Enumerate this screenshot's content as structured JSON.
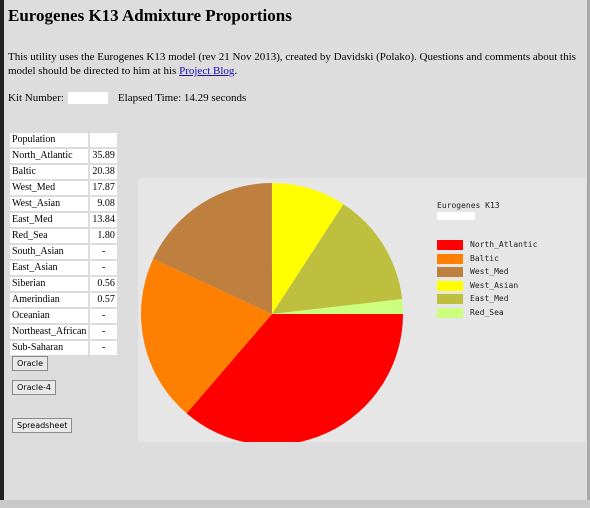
{
  "page": {
    "title": "Eurogenes K13 Admixture Proportions",
    "intro_text": "This utility uses the Eurogenes K13 model (rev 21 Nov 2013), created by Davidski (Polako). Questions and comments about this model should be directed to him at his ",
    "blog_link_text": "Project Blog",
    "intro_end": ".",
    "kit_label": "Kit Number:",
    "kit_value": "",
    "elapsed_label": "Elapsed Time: 14.29 seconds"
  },
  "table": {
    "header": "Population",
    "rows": [
      {
        "name": "North_Atlantic",
        "value": "35.89"
      },
      {
        "name": "Baltic",
        "value": "20.38"
      },
      {
        "name": "West_Med",
        "value": "17.87"
      },
      {
        "name": "West_Asian",
        "value": "9.08"
      },
      {
        "name": "East_Med",
        "value": "13.84"
      },
      {
        "name": "Red_Sea",
        "value": "1.80"
      },
      {
        "name": "South_Asian",
        "value": "-"
      },
      {
        "name": "East_Asian",
        "value": "-"
      },
      {
        "name": "Siberian",
        "value": "0.56"
      },
      {
        "name": "Amerindian",
        "value": "0.57"
      },
      {
        "name": "Oceanian",
        "value": "-"
      },
      {
        "name": "Northeast_African",
        "value": "-"
      },
      {
        "name": "Sub-Saharan",
        "value": "-"
      }
    ]
  },
  "buttons": {
    "oracle": "Oracle",
    "oracle4": "Oracle-4",
    "spreadsheet": "Spreadsheet"
  },
  "chart_data": {
    "type": "pie",
    "title": "Eurogenes K13",
    "categories": [
      "North_Atlantic",
      "Baltic",
      "West_Med",
      "West_Asian",
      "East_Med",
      "Red_Sea"
    ],
    "values": [
      35.89,
      20.38,
      17.87,
      9.08,
      13.84,
      1.8
    ],
    "colors": [
      "#ff0000",
      "#ff8000",
      "#bf7f3f",
      "#ffff00",
      "#bfbf3f",
      "#ccff80"
    ],
    "legend_position": "right"
  }
}
